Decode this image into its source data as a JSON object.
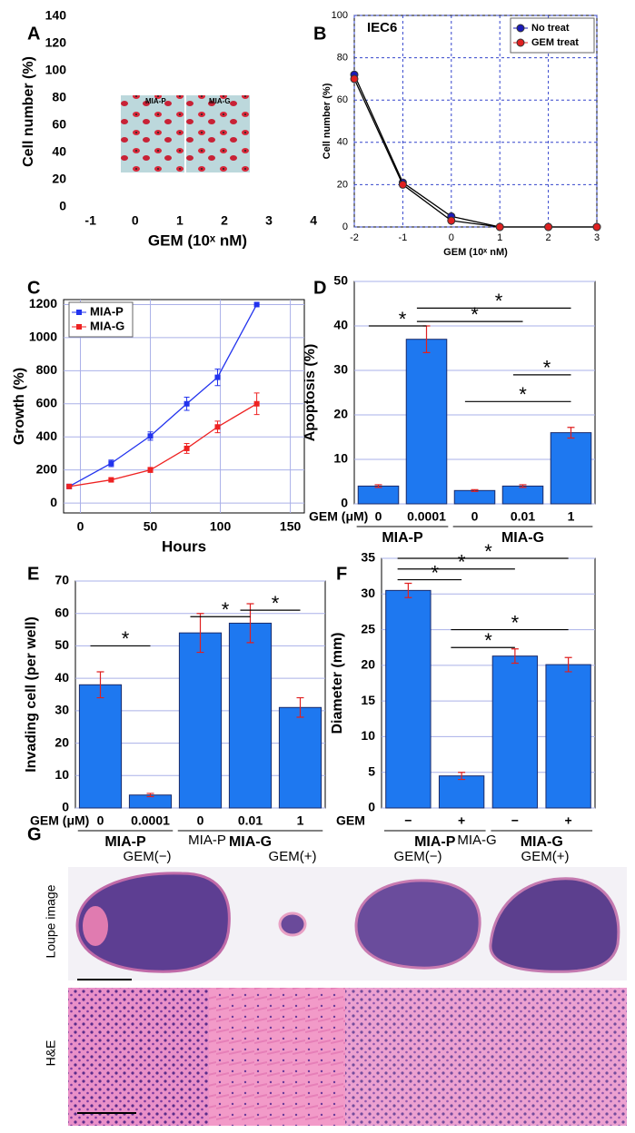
{
  "chart_data": [
    {
      "panel": "A",
      "type": "image-axes",
      "ylabel": "Cell number (%)",
      "xlabel": "GEM (10ˣ nM)",
      "xlim": [
        -1.4,
        4.2
      ],
      "ylim": [
        0,
        140
      ],
      "xticks": [
        -1,
        0,
        1,
        2,
        3,
        4
      ],
      "yticks": [
        0,
        20,
        40,
        60,
        80,
        100,
        120,
        140
      ],
      "inset_labels": [
        "MIA-P",
        "MIA-G"
      ],
      "frame": false,
      "grid": false
    },
    {
      "panel": "B",
      "type": "line",
      "annotation": "IEC6",
      "ylabel": "Cell number (%)",
      "xlabel": "GEM (10ˣ nM)",
      "x": [
        -2,
        -1,
        0,
        1,
        2,
        3
      ],
      "xlim": [
        -2,
        3
      ],
      "ylim": [
        0,
        100
      ],
      "xticks": [
        -2,
        -1,
        0,
        1,
        2,
        3
      ],
      "yticks": [
        0,
        20,
        40,
        60,
        80,
        100
      ],
      "series": [
        {
          "name": "No treat",
          "color": "#1a1ab8",
          "values": [
            72,
            21,
            5,
            0,
            0,
            0
          ]
        },
        {
          "name": "GEM treat",
          "color": "#e02020",
          "values": [
            70,
            20,
            3,
            0,
            0,
            0
          ]
        }
      ],
      "line_color": "#000000",
      "marker": "circle",
      "legend": "upper right",
      "frame": true,
      "grid": true
    },
    {
      "panel": "C",
      "type": "line",
      "ylabel": "Growth (%)",
      "xlabel": "Hours",
      "x": [
        -8,
        22,
        50,
        76,
        98,
        126
      ],
      "xlim": [
        -12,
        160
      ],
      "ylim": [
        -60,
        1230
      ],
      "xticks": [
        0,
        50,
        100,
        150
      ],
      "yticks": [
        0,
        200,
        400,
        600,
        800,
        1000,
        1200
      ],
      "series": [
        {
          "name": "MIA-P",
          "color": "#2233ee",
          "values": [
            100,
            240,
            405,
            600,
            760,
            1200
          ],
          "errors": [
            0,
            20,
            25,
            40,
            50,
            0
          ]
        },
        {
          "name": "MIA-G",
          "color": "#ee2222",
          "values": [
            100,
            140,
            200,
            330,
            460,
            600
          ],
          "errors": [
            0,
            10,
            15,
            30,
            35,
            65
          ]
        }
      ],
      "marker": "square",
      "legend": "upper left",
      "frame": true,
      "grid": true
    },
    {
      "panel": "D",
      "type": "bar",
      "ylabel": "Apoptosis (%)",
      "xlabel": "GEM (μM)",
      "categories": [
        "0",
        "0.0001",
        "0",
        "0.01",
        "1"
      ],
      "values": [
        4,
        37,
        3,
        4,
        16
      ],
      "errors": [
        0.3,
        3,
        0.2,
        0.3,
        1.2
      ],
      "groups": [
        "MIA-P",
        "MIA-G"
      ],
      "ylim": [
        0,
        50
      ],
      "yticks": [
        0,
        10,
        20,
        30,
        40,
        50
      ],
      "annotations": [
        "*",
        "*",
        "*",
        "*",
        "*"
      ],
      "color": "#1e78f0",
      "error_color": "#e02020",
      "frame": true,
      "grid": true
    },
    {
      "panel": "E",
      "type": "bar",
      "ylabel": "Invading cell (per well)",
      "xlabel": "GEM (μM)",
      "categories": [
        "0",
        "0.0001",
        "0",
        "0.01",
        "1"
      ],
      "values": [
        38,
        4,
        54,
        57,
        31
      ],
      "errors": [
        4,
        0.5,
        6,
        6,
        3
      ],
      "groups": [
        "MIA-P",
        "MIA-G"
      ],
      "ylim": [
        0,
        70
      ],
      "yticks": [
        0,
        10,
        20,
        30,
        40,
        50,
        60,
        70
      ],
      "annotations": [
        "*",
        "*",
        "*"
      ],
      "color": "#1e78f0",
      "error_color": "#e02020",
      "frame": true,
      "grid": true
    },
    {
      "panel": "F",
      "type": "bar",
      "ylabel": "Diameter (mm)",
      "xlabel": "GEM",
      "categories": [
        "−",
        "+",
        "−",
        "+"
      ],
      "values": [
        30.5,
        4.5,
        21.3,
        20.1
      ],
      "errors": [
        1,
        0.5,
        1,
        1
      ],
      "groups": [
        "MIA-P",
        "MIA-G"
      ],
      "ylim": [
        0,
        35
      ],
      "yticks": [
        0,
        5,
        10,
        15,
        20,
        25,
        30,
        35
      ],
      "annotations": [
        "*",
        "*",
        "*",
        "*",
        "*"
      ],
      "color": "#1e78f0",
      "error_color": "#e02020",
      "frame": true,
      "grid": true
    }
  ],
  "panel_g": {
    "panel": "G",
    "groups": [
      "MIA-P",
      "MIA-G"
    ],
    "columns": [
      "GEM(−)",
      "GEM(+)",
      "GEM(−)",
      "GEM(+)"
    ],
    "rows": [
      "Loupe image",
      "H&E"
    ]
  }
}
